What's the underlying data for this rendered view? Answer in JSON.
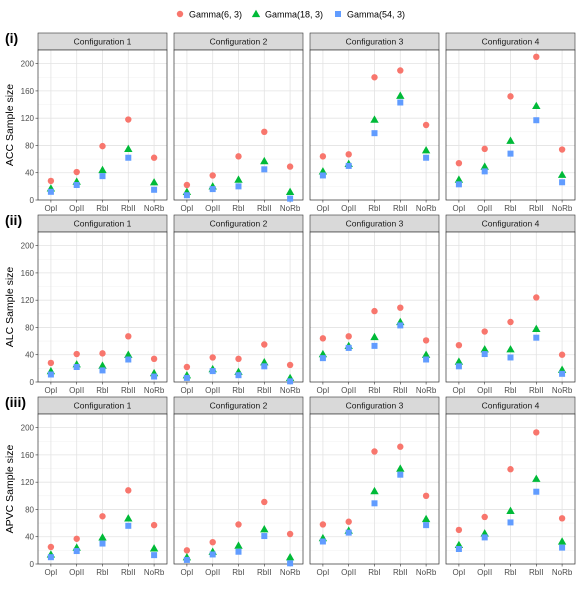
{
  "legend": {
    "position": "top",
    "items": [
      {
        "name": "Gamma(6, 3)",
        "color": "#F8766D",
        "shape": "circle"
      },
      {
        "name": "Gamma(18, 3)",
        "color": "#00BA38",
        "shape": "triangle"
      },
      {
        "name": "Gamma(54, 3)",
        "color": "#619CFF",
        "shape": "square"
      }
    ]
  },
  "chart_data": [
    {
      "type": "scatter",
      "row_label": "(i)",
      "ylabel": "ACC Sample size",
      "ylim": [
        0,
        220
      ],
      "yticks": [
        0,
        40,
        80,
        120,
        160,
        200
      ],
      "categories": [
        "OpI",
        "OpII",
        "RbI",
        "RbII",
        "NoRb"
      ],
      "grid": true,
      "panels": [
        {
          "title": "Configuration 1",
          "series": [
            {
              "name": "Gamma(6, 3)",
              "values": [
                28,
                41,
                79,
                118,
                62
              ]
            },
            {
              "name": "Gamma(18, 3)",
              "values": [
                17,
                27,
                44,
                75,
                26
              ]
            },
            {
              "name": "Gamma(54, 3)",
              "values": [
                12,
                22,
                35,
                62,
                15
              ]
            }
          ]
        },
        {
          "title": "Configuration 2",
          "series": [
            {
              "name": "Gamma(6, 3)",
              "values": [
                22,
                36,
                64,
                100,
                49
              ]
            },
            {
              "name": "Gamma(18, 3)",
              "values": [
                12,
                20,
                30,
                57,
                12
              ]
            },
            {
              "name": "Gamma(54, 3)",
              "values": [
                7,
                16,
                20,
                45,
                2
              ]
            }
          ]
        },
        {
          "title": "Configuration 3",
          "series": [
            {
              "name": "Gamma(6, 3)",
              "values": [
                64,
                67,
                180,
                190,
                110
              ]
            },
            {
              "name": "Gamma(18, 3)",
              "values": [
                42,
                53,
                118,
                153,
                73
              ]
            },
            {
              "name": "Gamma(54, 3)",
              "values": [
                36,
                50,
                98,
                143,
                62
              ]
            }
          ]
        },
        {
          "title": "Configuration 4",
          "series": [
            {
              "name": "Gamma(6, 3)",
              "values": [
                54,
                75,
                152,
                210,
                74
              ]
            },
            {
              "name": "Gamma(18, 3)",
              "values": [
                30,
                49,
                87,
                138,
                37
              ]
            },
            {
              "name": "Gamma(54, 3)",
              "values": [
                23,
                42,
                68,
                117,
                26
              ]
            }
          ]
        }
      ]
    },
    {
      "type": "scatter",
      "row_label": "(ii)",
      "ylabel": "ALC Sample size",
      "ylim": [
        0,
        220
      ],
      "yticks": [
        0,
        40,
        80,
        120,
        160,
        200
      ],
      "categories": [
        "OpI",
        "OpII",
        "RbI",
        "RbII",
        "NoRb"
      ],
      "grid": true,
      "panels": [
        {
          "title": "Configuration 1",
          "series": [
            {
              "name": "Gamma(6, 3)",
              "values": [
                28,
                41,
                42,
                67,
                34
              ]
            },
            {
              "name": "Gamma(18, 3)",
              "values": [
                16,
                26,
                24,
                40,
                13
              ]
            },
            {
              "name": "Gamma(54, 3)",
              "values": [
                11,
                22,
                17,
                33,
                8
              ]
            }
          ]
        },
        {
          "title": "Configuration 2",
          "series": [
            {
              "name": "Gamma(6, 3)",
              "values": [
                22,
                36,
                34,
                55,
                25
              ]
            },
            {
              "name": "Gamma(18, 3)",
              "values": [
                10,
                19,
                15,
                29,
                6
              ]
            },
            {
              "name": "Gamma(54, 3)",
              "values": [
                6,
                16,
                10,
                23,
                1
              ]
            }
          ]
        },
        {
          "title": "Configuration 3",
          "series": [
            {
              "name": "Gamma(6, 3)",
              "values": [
                64,
                67,
                104,
                109,
                61
              ]
            },
            {
              "name": "Gamma(18, 3)",
              "values": [
                41,
                53,
                66,
                88,
                40
              ]
            },
            {
              "name": "Gamma(54, 3)",
              "values": [
                35,
                50,
                53,
                83,
                33
              ]
            }
          ]
        },
        {
          "title": "Configuration 4",
          "series": [
            {
              "name": "Gamma(6, 3)",
              "values": [
                54,
                74,
                88,
                124,
                40
              ]
            },
            {
              "name": "Gamma(18, 3)",
              "values": [
                30,
                48,
                48,
                78,
                18
              ]
            },
            {
              "name": "Gamma(54, 3)",
              "values": [
                23,
                41,
                36,
                65,
                12
              ]
            }
          ]
        }
      ]
    },
    {
      "type": "scatter",
      "row_label": "(iii)",
      "ylabel": "APVC Sample size",
      "ylim": [
        0,
        220
      ],
      "yticks": [
        0,
        40,
        80,
        120,
        160,
        200
      ],
      "categories": [
        "OpI",
        "OpII",
        "RbI",
        "RbII",
        "NoRb"
      ],
      "grid": true,
      "panels": [
        {
          "title": "Configuration 1",
          "series": [
            {
              "name": "Gamma(6, 3)",
              "values": [
                25,
                37,
                70,
                108,
                57
              ]
            },
            {
              "name": "Gamma(18, 3)",
              "values": [
                14,
                24,
                39,
                67,
                23
              ]
            },
            {
              "name": "Gamma(54, 3)",
              "values": [
                10,
                19,
                30,
                56,
                13
              ]
            }
          ]
        },
        {
          "title": "Configuration 2",
          "series": [
            {
              "name": "Gamma(6, 3)",
              "values": [
                20,
                32,
                58,
                91,
                44
              ]
            },
            {
              "name": "Gamma(18, 3)",
              "values": [
                10,
                18,
                27,
                51,
                10
              ]
            },
            {
              "name": "Gamma(54, 3)",
              "values": [
                6,
                14,
                18,
                41,
                1
              ]
            }
          ]
        },
        {
          "title": "Configuration 3",
          "series": [
            {
              "name": "Gamma(6, 3)",
              "values": [
                58,
                62,
                165,
                172,
                100
              ]
            },
            {
              "name": "Gamma(18, 3)",
              "values": [
                38,
                49,
                107,
                140,
                66
              ]
            },
            {
              "name": "Gamma(54, 3)",
              "values": [
                33,
                46,
                89,
                131,
                57
              ]
            }
          ]
        },
        {
          "title": "Configuration 4",
          "series": [
            {
              "name": "Gamma(6, 3)",
              "values": [
                50,
                69,
                139,
                193,
                67
              ]
            },
            {
              "name": "Gamma(18, 3)",
              "values": [
                28,
                45,
                78,
                125,
                33
              ]
            },
            {
              "name": "Gamma(54, 3)",
              "values": [
                22,
                39,
                61,
                106,
                24
              ]
            }
          ]
        }
      ]
    }
  ]
}
